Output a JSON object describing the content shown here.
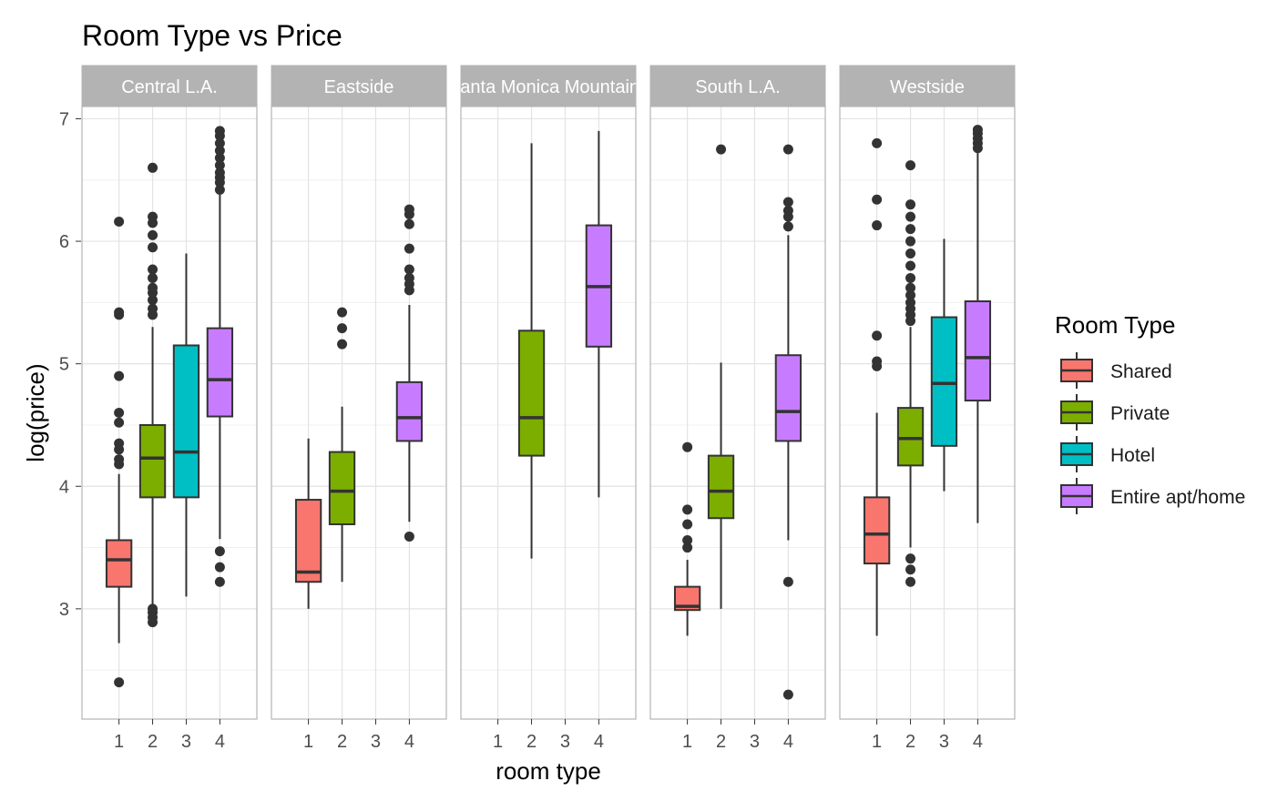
{
  "chart_data": {
    "type": "boxplot",
    "title": "Room Type vs Price",
    "xlabel": "room type",
    "ylabel": "log(price)",
    "ylim": [
      2.1,
      7.1
    ],
    "y_ticks": [
      3,
      4,
      5,
      6,
      7
    ],
    "x_categories": [
      "1",
      "2",
      "3",
      "4"
    ],
    "grid": true,
    "legend": {
      "title": "Room Type",
      "position": "right",
      "entries": [
        {
          "key": "1",
          "label": "Shared",
          "color": "#F8766D"
        },
        {
          "key": "2",
          "label": "Private",
          "color": "#7CAE00"
        },
        {
          "key": "3",
          "label": "Hotel",
          "color": "#00BFC4"
        },
        {
          "key": "4",
          "label": "Entire apt/home",
          "color": "#C77CFF"
        }
      ]
    },
    "panels": [
      {
        "name": "Central L.A.",
        "boxes": [
          {
            "x": 1,
            "q1": 3.18,
            "median": 3.4,
            "q3": 3.56,
            "whisker_low": 2.72,
            "whisker_high": 4.1,
            "outliers": [
              2.4,
              4.18,
              4.22,
              4.3,
              4.35,
              4.52,
              4.6,
              4.9,
              5.4,
              5.42,
              6.16
            ]
          },
          {
            "x": 2,
            "q1": 3.91,
            "median": 4.23,
            "q3": 4.5,
            "whisker_low": 3.02,
            "whisker_high": 5.3,
            "outliers": [
              2.89,
              2.93,
              2.97,
              3.0,
              5.4,
              5.45,
              5.52,
              5.58,
              5.62,
              5.7,
              5.77,
              5.95,
              6.05,
              6.15,
              6.2,
              6.6
            ]
          },
          {
            "x": 3,
            "q1": 3.91,
            "median": 4.28,
            "q3": 5.15,
            "whisker_low": 3.1,
            "whisker_high": 5.9,
            "outliers": []
          },
          {
            "x": 4,
            "q1": 4.57,
            "median": 4.87,
            "q3": 5.29,
            "whisker_low": 3.57,
            "whisker_high": 6.38,
            "outliers": [
              3.22,
              3.34,
              3.47,
              6.42,
              6.48,
              6.52,
              6.56,
              6.62,
              6.68,
              6.74,
              6.8,
              6.86,
              6.9
            ]
          }
        ]
      },
      {
        "name": "Eastside",
        "boxes": [
          {
            "x": 1,
            "q1": 3.22,
            "median": 3.3,
            "q3": 3.89,
            "whisker_low": 3.0,
            "whisker_high": 4.39,
            "outliers": []
          },
          {
            "x": 2,
            "q1": 3.69,
            "median": 3.96,
            "q3": 4.28,
            "whisker_low": 3.22,
            "whisker_high": 4.65,
            "outliers": [
              5.16,
              5.29,
              5.42
            ]
          },
          {
            "x": 4,
            "q1": 4.37,
            "median": 4.56,
            "q3": 4.85,
            "whisker_low": 3.71,
            "whisker_high": 5.48,
            "outliers": [
              3.59,
              5.6,
              5.65,
              5.7,
              5.77,
              5.94,
              6.14,
              6.22,
              6.26
            ]
          }
        ]
      },
      {
        "name": "Santa Monica Mountains",
        "boxes": [
          {
            "x": 2,
            "q1": 4.25,
            "median": 4.56,
            "q3": 5.27,
            "whisker_low": 3.41,
            "whisker_high": 6.8,
            "outliers": []
          },
          {
            "x": 4,
            "q1": 5.14,
            "median": 5.63,
            "q3": 6.13,
            "whisker_low": 3.91,
            "whisker_high": 6.9,
            "outliers": []
          }
        ]
      },
      {
        "name": "South L.A.",
        "boxes": [
          {
            "x": 1,
            "q1": 2.99,
            "median": 3.02,
            "q3": 3.18,
            "whisker_low": 2.78,
            "whisker_high": 3.4,
            "outliers": [
              3.5,
              3.56,
              3.69,
              3.81,
              4.32
            ]
          },
          {
            "x": 2,
            "q1": 3.74,
            "median": 3.96,
            "q3": 4.25,
            "whisker_low": 3.0,
            "whisker_high": 5.01,
            "outliers": [
              6.75
            ]
          },
          {
            "x": 4,
            "q1": 4.37,
            "median": 4.61,
            "q3": 5.07,
            "whisker_low": 3.56,
            "whisker_high": 6.05,
            "outliers": [
              2.3,
              3.22,
              6.12,
              6.2,
              6.25,
              6.32,
              6.75
            ]
          }
        ]
      },
      {
        "name": "Westside",
        "boxes": [
          {
            "x": 1,
            "q1": 3.37,
            "median": 3.61,
            "q3": 3.91,
            "whisker_low": 2.78,
            "whisker_high": 4.6,
            "outliers": [
              4.98,
              5.02,
              5.23,
              6.13,
              6.34,
              6.8
            ]
          },
          {
            "x": 2,
            "q1": 4.17,
            "median": 4.39,
            "q3": 4.64,
            "whisker_low": 3.5,
            "whisker_high": 5.3,
            "outliers": [
              3.22,
              3.32,
              3.41,
              5.35,
              5.4,
              5.45,
              5.5,
              5.56,
              5.62,
              5.7,
              5.8,
              5.9,
              6.0,
              6.1,
              6.2,
              6.3,
              6.62
            ]
          },
          {
            "x": 3,
            "q1": 4.33,
            "median": 4.84,
            "q3": 5.38,
            "whisker_low": 3.96,
            "whisker_high": 6.02,
            "outliers": []
          },
          {
            "x": 4,
            "q1": 4.7,
            "median": 5.05,
            "q3": 5.51,
            "whisker_low": 3.7,
            "whisker_high": 6.72,
            "outliers": [
              6.76,
              6.8,
              6.84,
              6.88,
              6.91
            ]
          }
        ]
      }
    ]
  }
}
